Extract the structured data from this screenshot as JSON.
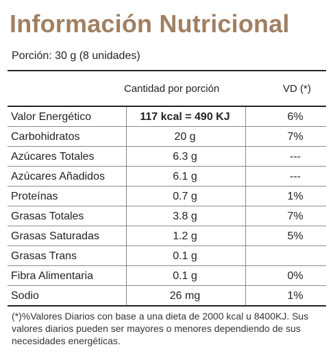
{
  "title": "Información Nutricional",
  "portion": "Porción: 30 g (8 unidades)",
  "header": {
    "quantity": "Cantidad por porción",
    "vd": "VD (*)"
  },
  "rows": [
    {
      "name": "Valor Energético",
      "quantity": "117 kcal = 490 KJ",
      "vd": "6%"
    },
    {
      "name": "Carbohidratos",
      "quantity": "20 g",
      "vd": "7%"
    },
    {
      "name": "Azúcares Totales",
      "quantity": "6.3 g",
      "vd": "---"
    },
    {
      "name": "Azúcares Añadidos",
      "quantity": "6.1 g",
      "vd": "---"
    },
    {
      "name": "Proteínas",
      "quantity": "0.7 g",
      "vd": "1%"
    },
    {
      "name": "Grasas Totales",
      "quantity": "3.8 g",
      "vd": "7%"
    },
    {
      "name": "Grasas Saturadas",
      "quantity": "1.2 g",
      "vd": "5%"
    },
    {
      "name": "Grasas Trans",
      "quantity": "0.1 g",
      "vd": ""
    },
    {
      "name": "Fibra Alimentaria",
      "quantity": "0.1 g",
      "vd": "0%"
    },
    {
      "name": "Sodio",
      "quantity": "26 mg",
      "vd": "1%"
    }
  ],
  "footnote": "(*)%Valores Diarios con base a una dieta de 2000 kcal u 8400KJ. Sus valores diarios pueden ser mayores o menores dependiendo de sus necesidades energéticas.",
  "colors": {
    "title": "#a07f62"
  }
}
